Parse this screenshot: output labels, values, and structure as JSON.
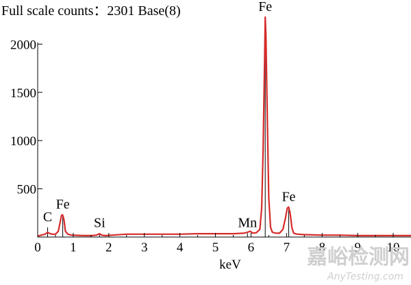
{
  "chart_data": {
    "type": "line",
    "title": "Full scale counts：2301  Base(8)",
    "xlabel": "keV",
    "ylabel": "",
    "xlim": [
      0,
      10.5
    ],
    "ylim": [
      0,
      2301
    ],
    "x_ticks": [
      0,
      1,
      2,
      3,
      4,
      5,
      6,
      7,
      8,
      9,
      10
    ],
    "x_tick_labels": [
      "0",
      "1",
      "2",
      "3",
      "4",
      "5",
      "6",
      "7",
      "8",
      "9",
      "10"
    ],
    "y_ticks": [
      500,
      1000,
      1500,
      2000
    ],
    "y_tick_labels": [
      "500",
      "1000",
      "1500",
      "2000"
    ],
    "grid": false,
    "series": [
      {
        "x": [
          0.0,
          0.1,
          0.2,
          0.28,
          0.32,
          0.4,
          0.5,
          0.58,
          0.63,
          0.67,
          0.7,
          0.74,
          0.78,
          0.85,
          0.95,
          1.1,
          1.3,
          1.5,
          1.65,
          1.74,
          1.8,
          1.9,
          2.1,
          2.5,
          3.0,
          3.5,
          4.0,
          4.5,
          5.0,
          5.5,
          5.8,
          5.9,
          5.98,
          6.05,
          6.15,
          6.25,
          6.3,
          6.34,
          6.38,
          6.4,
          6.42,
          6.46,
          6.5,
          6.55,
          6.6,
          6.7,
          6.8,
          6.9,
          6.97,
          7.02,
          7.06,
          7.1,
          7.15,
          7.2,
          7.3,
          7.5,
          8.0,
          8.5,
          9.0,
          9.5,
          10.0,
          10.5
        ],
        "y": [
          10,
          20,
          28,
          50,
          40,
          30,
          30,
          60,
          150,
          225,
          230,
          180,
          60,
          30,
          20,
          18,
          15,
          15,
          20,
          35,
          20,
          15,
          20,
          30,
          30,
          30,
          30,
          35,
          35,
          35,
          40,
          50,
          60,
          40,
          45,
          80,
          300,
          900,
          1800,
          2280,
          2100,
          1200,
          400,
          100,
          50,
          40,
          40,
          80,
          200,
          300,
          310,
          250,
          100,
          40,
          30,
          25,
          20,
          20,
          15,
          15,
          15,
          15
        ]
      }
    ],
    "peak_markers": [
      {
        "label": "C",
        "x": 0.28,
        "y": 100
      },
      {
        "label": "Fe",
        "x": 0.705,
        "y": 230
      },
      {
        "label": "Si",
        "x": 1.74,
        "y": 40
      },
      {
        "label": "Mn",
        "x": 5.9,
        "y": 40
      },
      {
        "label": "Fe",
        "x": 6.4,
        "y": 2280
      },
      {
        "label": "Fe",
        "x": 7.06,
        "y": 310
      }
    ],
    "line_color": "#d62a2a"
  },
  "watermark": {
    "main": "嘉峪检测网",
    "sub": "AnyTesting.com"
  }
}
